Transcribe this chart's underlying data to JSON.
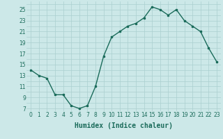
{
  "x": [
    0,
    1,
    2,
    3,
    4,
    5,
    6,
    7,
    8,
    9,
    10,
    11,
    12,
    13,
    14,
    15,
    16,
    17,
    18,
    19,
    20,
    21,
    22,
    23
  ],
  "y": [
    14,
    13,
    12.5,
    9.5,
    9.5,
    7.5,
    7,
    7.5,
    11,
    16.5,
    20,
    21,
    22,
    22.5,
    23.5,
    25.5,
    25,
    24,
    25,
    23,
    22,
    21,
    18,
    15.5
  ],
  "line_color": "#1a6b5a",
  "marker": "s",
  "marker_size": 2.0,
  "bg_color": "#cce8e8",
  "grid_color": "#aacfcf",
  "xlabel": "Humidex (Indice chaleur)",
  "ylim": [
    6.5,
    26.5
  ],
  "xlim": [
    -0.5,
    23.5
  ],
  "yticks": [
    7,
    9,
    11,
    13,
    15,
    17,
    19,
    21,
    23,
    25
  ],
  "xticks": [
    0,
    1,
    2,
    3,
    4,
    5,
    6,
    7,
    8,
    9,
    10,
    11,
    12,
    13,
    14,
    15,
    16,
    17,
    18,
    19,
    20,
    21,
    22,
    23
  ],
  "tick_fontsize": 5.5,
  "xlabel_fontsize": 7,
  "linewidth": 1.0
}
